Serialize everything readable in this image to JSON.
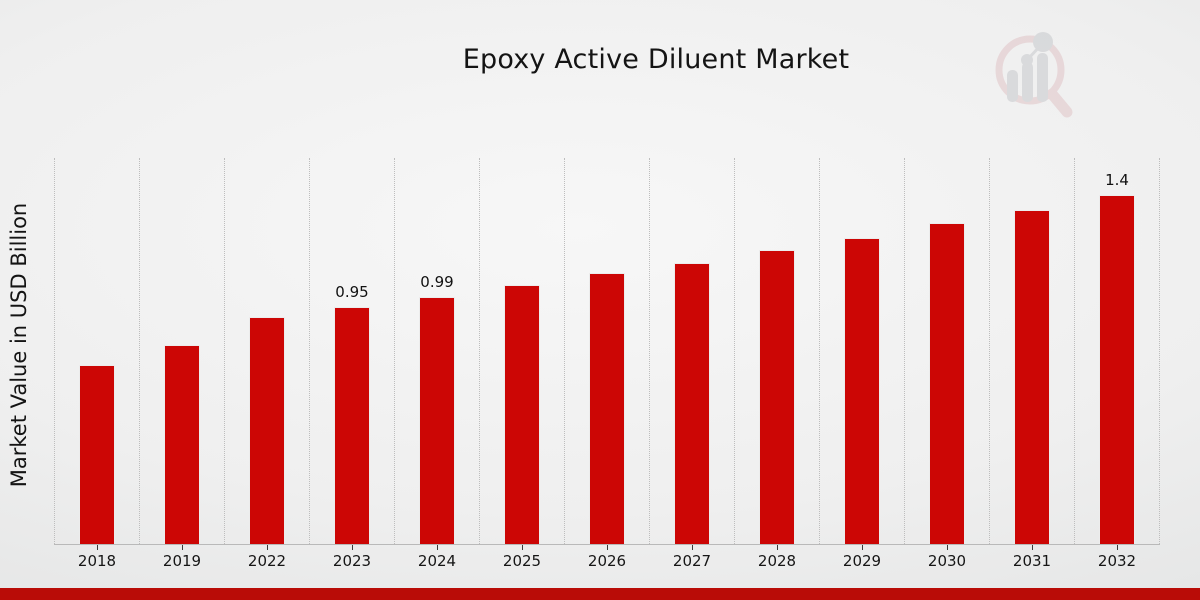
{
  "header": {
    "title": "Epoxy Active Diluent Market"
  },
  "axes": {
    "y_label": "Market Value in USD Billion"
  },
  "watermark": {
    "icon": "magnifier-bar-chart-logo",
    "ring_color": "#dfc0c3",
    "bars_color": "#c3c5c9"
  },
  "colors": {
    "bar": "#cc0605",
    "bar_edge": "#ececec",
    "footer_stripe": "#b90c07"
  },
  "chart_data": {
    "type": "bar",
    "title": "Epoxy Active Diluent Market",
    "xlabel": "",
    "ylabel": "Market Value in USD Billion",
    "categories": [
      "2018",
      "2019",
      "2022",
      "2023",
      "2024",
      "2025",
      "2026",
      "2027",
      "2028",
      "2029",
      "2030",
      "2031",
      "2032"
    ],
    "values": [
      0.72,
      0.8,
      0.91,
      0.95,
      0.99,
      1.04,
      1.09,
      1.13,
      1.18,
      1.23,
      1.29,
      1.34,
      1.4
    ],
    "data_labels": {
      "2023": "0.95",
      "2024": "0.99",
      "2032": "1.4"
    },
    "unit": "USD Billion",
    "ylim": [
      0,
      1.55
    ],
    "y_ticks_visible": false,
    "grid": "vertical-dotted",
    "legend": "none",
    "bar_color": "#cc0605"
  }
}
